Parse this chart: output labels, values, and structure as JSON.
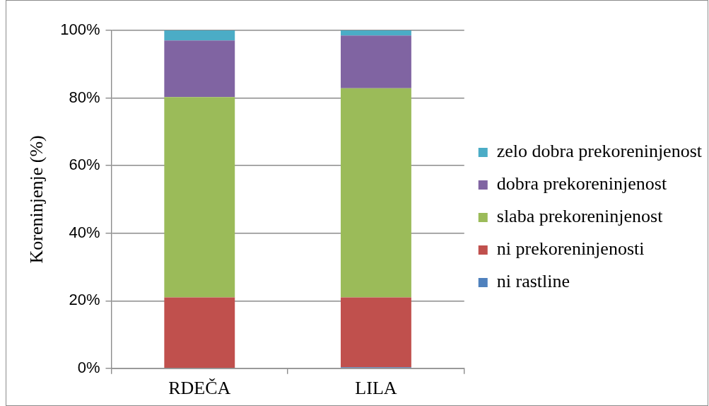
{
  "chart_data": {
    "type": "bar",
    "ylabel": "Koreninjenje (%)",
    "categories": [
      "RDEČA",
      "LILA"
    ],
    "stacked": true,
    "series": [
      {
        "name": "ni rastline",
        "color": "#4f81bd",
        "values": [
          0,
          0.3
        ]
      },
      {
        "name": "ni prekoreninjenosti",
        "color": "#c0504d",
        "values": [
          21.0,
          20.7
        ]
      },
      {
        "name": "slaba prekoreninjenost",
        "color": "#9bbb59",
        "values": [
          59.3,
          61.9
        ]
      },
      {
        "name": "dobra prekoreninjenost",
        "color": "#8064a2",
        "values": [
          16.7,
          15.6
        ]
      },
      {
        "name": "zelo dobra prekoreninjenost",
        "color": "#4bacc6",
        "values": [
          3.0,
          1.5
        ]
      }
    ],
    "ylim": [
      0,
      100
    ],
    "yticks": [
      {
        "value": 0,
        "label": "0%"
      },
      {
        "value": 20,
        "label": "20%"
      },
      {
        "value": 40,
        "label": "40%"
      },
      {
        "value": 60,
        "label": "60%"
      },
      {
        "value": 80,
        "label": "80%"
      },
      {
        "value": 100,
        "label": "100%"
      }
    ],
    "grid": "y",
    "legend": "right"
  }
}
